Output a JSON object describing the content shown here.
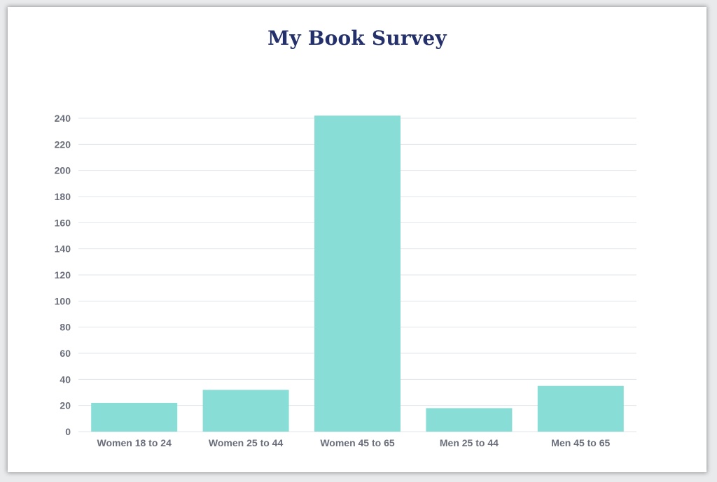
{
  "chart_data": {
    "type": "bar",
    "title": "My Book Survey",
    "xlabel": "",
    "ylabel": "",
    "categories": [
      "Women 18 to 24",
      "Women 25 to 44",
      "Women 45 to 65",
      "Men 25 to 44",
      "Men 45 to 65"
    ],
    "values": [
      22,
      32,
      242,
      18,
      35
    ],
    "ylim": [
      0,
      240
    ],
    "yticks": [
      0,
      20,
      40,
      60,
      80,
      100,
      120,
      140,
      160,
      180,
      200,
      220,
      240
    ],
    "grid": true,
    "bar_color": "#88ded6",
    "grid_color": "#e3e6ea",
    "title_color": "#23306b",
    "label_color": "#6b6f7b"
  }
}
